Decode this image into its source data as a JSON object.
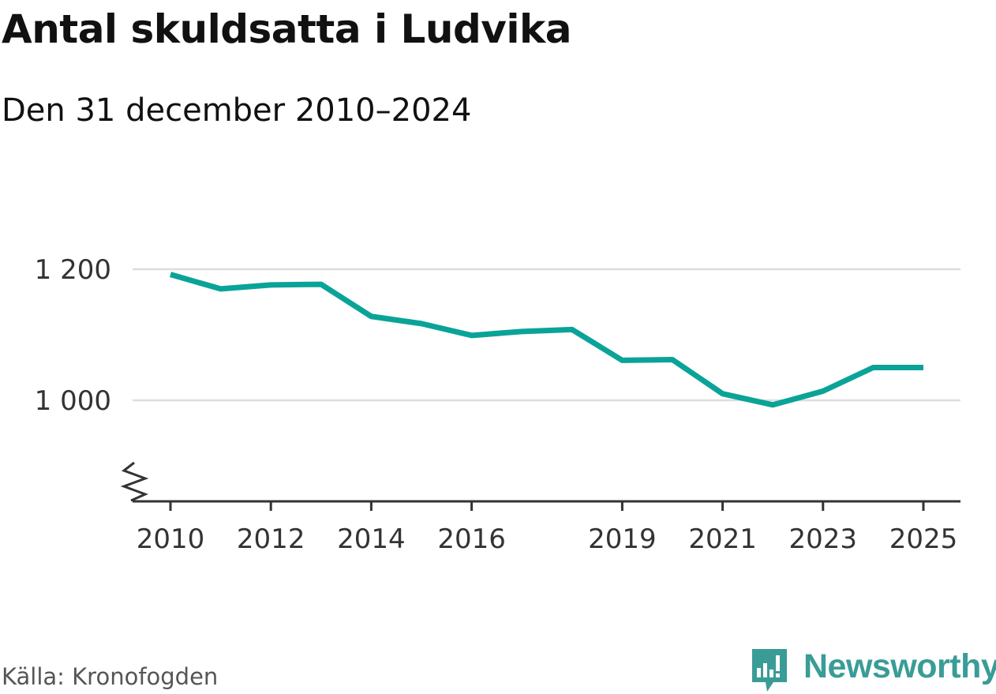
{
  "title": "Antal skuldsatta i Ludvika",
  "subtitle": "Den 31 december 2010–2024",
  "source": "Källa: Kronofogden",
  "brand": "Newsworthy",
  "colors": {
    "line": "#0aa398",
    "grid": "#dddddd",
    "axis": "#333333",
    "brand": "#3a9c96"
  },
  "chart_data": {
    "type": "line",
    "title": "Antal skuldsatta i Ludvika",
    "subtitle": "Den 31 december 2010–2024",
    "xlabel": "",
    "ylabel": "",
    "x": [
      2010,
      2011,
      2012,
      2013,
      2014,
      2015,
      2016,
      2017,
      2018,
      2019,
      2020,
      2021,
      2022,
      2023,
      2024,
      2025
    ],
    "series": [
      {
        "values": [
          1192,
          1170,
          1176,
          1177,
          1128,
          1117,
          1099,
          1105,
          1108,
          1061,
          1062,
          1010,
          993,
          1014,
          1050,
          1050
        ]
      }
    ],
    "xlim": [
      2010,
      2025
    ],
    "ylim": [
      900,
      1200
    ],
    "y_axis_break": true,
    "x_ticks": [
      "2010",
      "2012",
      "2014",
      "2016",
      "2019",
      "2021",
      "2023",
      "2025"
    ],
    "y_ticks": [
      {
        "value": 1000,
        "label": "1 000"
      },
      {
        "value": 1200,
        "label": "1 200"
      }
    ],
    "grid": true,
    "legend": "none"
  }
}
